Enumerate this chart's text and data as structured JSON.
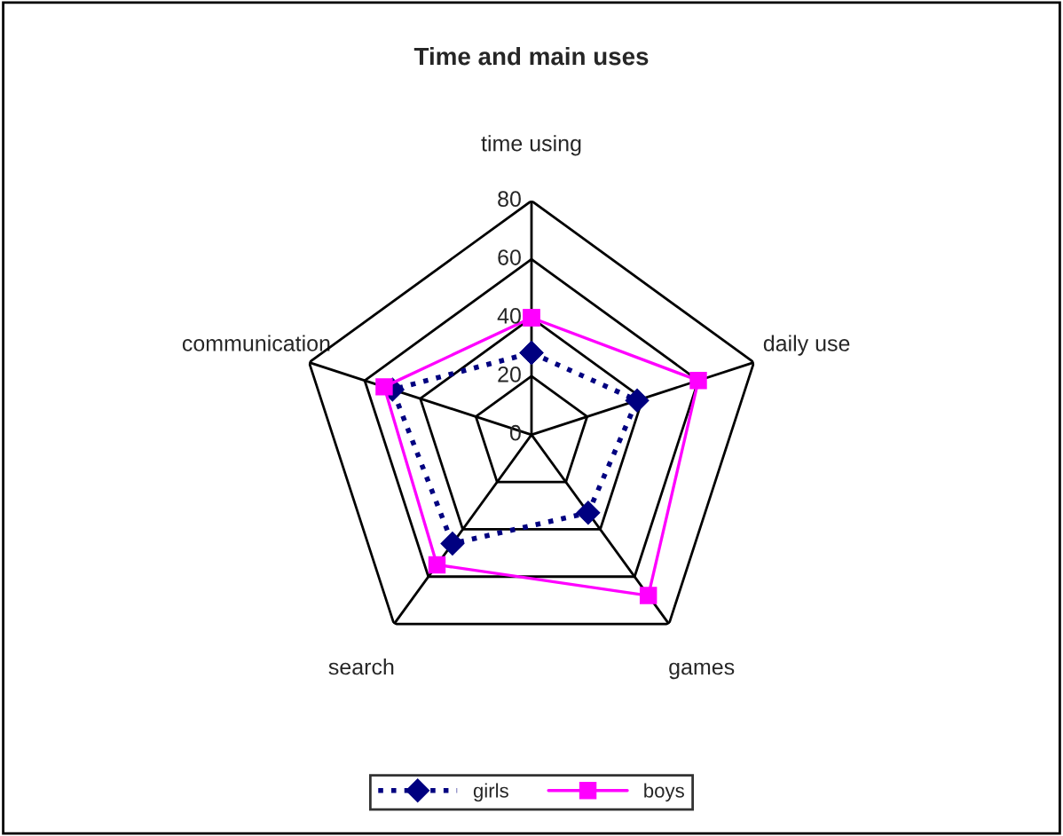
{
  "chart_data": {
    "type": "radar",
    "title": "Time and main uses",
    "categories": [
      "time using",
      "daily use",
      "games",
      "search",
      "communication"
    ],
    "ylim": [
      0,
      80
    ],
    "yticks": [
      0,
      20,
      40,
      60,
      80
    ],
    "grid": true,
    "legend": "bottom",
    "series": [
      {
        "name": "girls",
        "color": "#000080",
        "values": [
          28,
          38,
          33,
          46,
          50
        ],
        "marker": "diamond",
        "line_style": "dotted"
      },
      {
        "name": "boys",
        "color": "#ff00ff",
        "values": [
          40,
          60,
          68,
          55,
          53
        ],
        "marker": "square",
        "line_style": "solid"
      }
    ]
  }
}
